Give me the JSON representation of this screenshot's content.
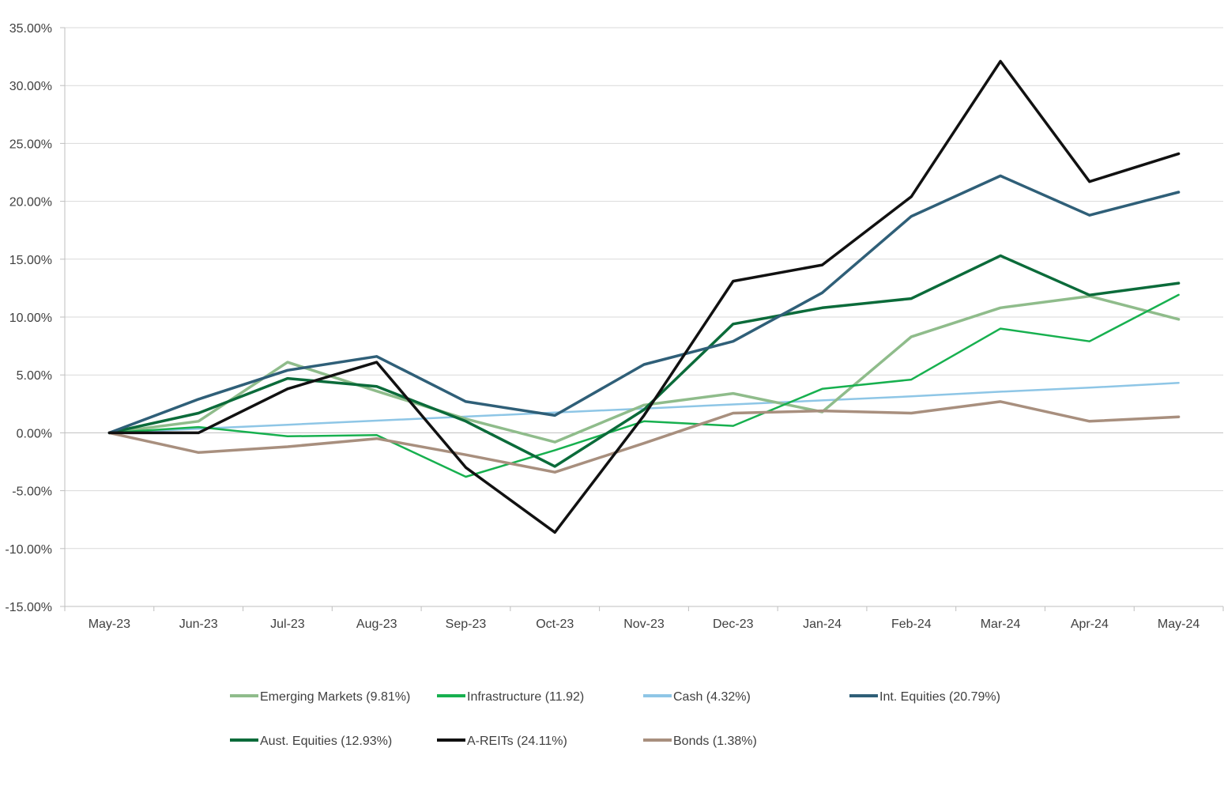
{
  "chart_data": {
    "type": "line",
    "title": "",
    "xlabel": "",
    "ylabel": "",
    "categories": [
      "May-23",
      "Jun-23",
      "Jul-23",
      "Aug-23",
      "Sep-23",
      "Oct-23",
      "Nov-23",
      "Dec-23",
      "Jan-24",
      "Feb-24",
      "Mar-24",
      "Apr-24",
      "May-24"
    ],
    "ylim": [
      -15,
      35
    ],
    "yticks": [
      -15,
      -10,
      -5,
      0,
      5,
      10,
      15,
      20,
      25,
      30,
      35
    ],
    "ytick_labels": [
      "-15.00%",
      "-10.00%",
      "-5.00%",
      "0.00%",
      "5.00%",
      "10.00%",
      "15.00%",
      "20.00%",
      "25.00%",
      "30.00%",
      "35.00%"
    ],
    "grid": true,
    "legend_position": "bottom",
    "series": [
      {
        "name": "Emerging Markets (9.81%)",
        "color": "#8fbc8b",
        "width": 3.5,
        "values": [
          0,
          1.0,
          6.1,
          3.6,
          1.2,
          -0.8,
          2.4,
          3.4,
          1.8,
          8.3,
          10.8,
          11.8,
          9.81
        ]
      },
      {
        "name": "Infrastructure (11.92)",
        "color": "#17b04f",
        "width": 2.5,
        "values": [
          0,
          0.5,
          -0.3,
          -0.2,
          -3.8,
          -1.5,
          1.0,
          0.6,
          3.8,
          4.6,
          9.0,
          7.9,
          11.92
        ]
      },
      {
        "name": "Cash (4.32%)",
        "color": "#8ec6e6",
        "width": 2.5,
        "values": [
          0,
          0.35,
          0.7,
          1.05,
          1.4,
          1.75,
          2.1,
          2.45,
          2.8,
          3.15,
          3.55,
          3.9,
          4.32
        ]
      },
      {
        "name": "Int. Equities (20.79%)",
        "color": "#2f5f78",
        "width": 3.5,
        "values": [
          0,
          2.9,
          5.4,
          6.6,
          2.7,
          1.5,
          5.9,
          7.9,
          12.1,
          18.7,
          22.2,
          18.8,
          20.79
        ]
      },
      {
        "name": "Aust. Equities (12.93%)",
        "color": "#0b6b3a",
        "width": 3.5,
        "values": [
          0,
          1.7,
          4.7,
          4.0,
          1.0,
          -2.9,
          2.0,
          9.4,
          10.8,
          11.6,
          15.3,
          11.9,
          12.93
        ]
      },
      {
        "name": "A-REITs (24.11%)",
        "color": "#111111",
        "width": 3.5,
        "values": [
          0,
          0,
          3.8,
          6.1,
          -3.0,
          -8.6,
          1.5,
          13.1,
          14.5,
          20.4,
          32.1,
          21.7,
          24.11
        ]
      },
      {
        "name": "Bonds (1.38%)",
        "color": "#a88f7e",
        "width": 3.5,
        "values": [
          0,
          -1.7,
          -1.2,
          -0.5,
          -1.9,
          -3.4,
          -0.9,
          1.7,
          1.9,
          1.7,
          2.7,
          1.0,
          1.38
        ]
      }
    ]
  }
}
